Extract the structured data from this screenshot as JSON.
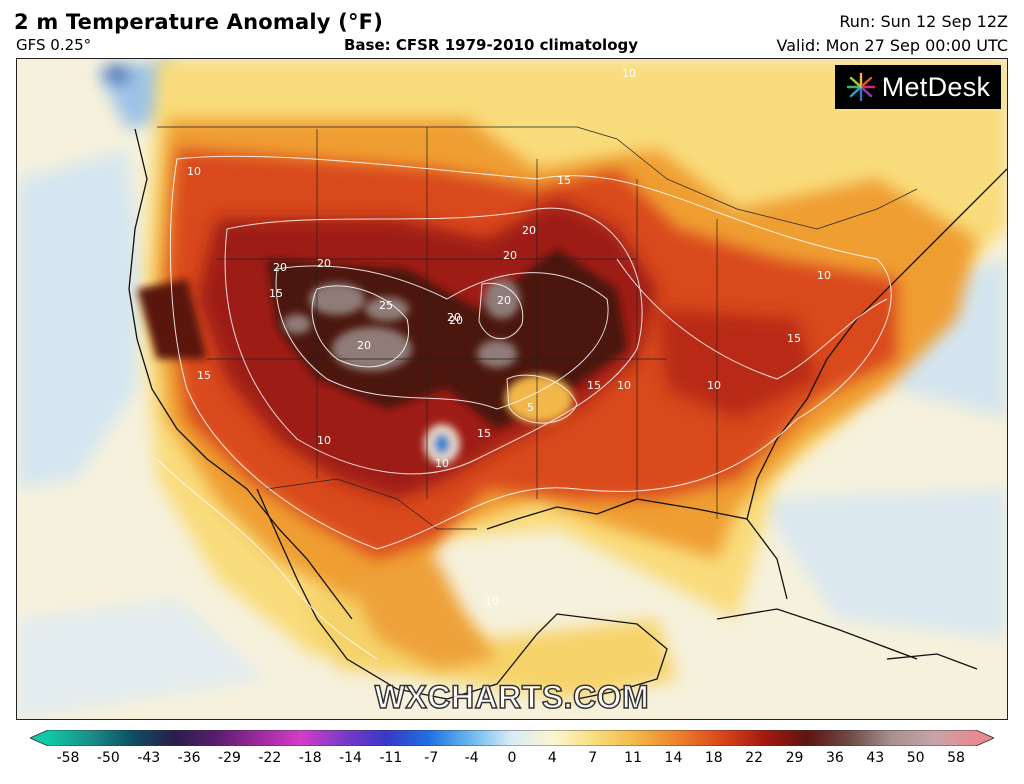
{
  "header": {
    "title": "2 m Temperature Anomaly (°F)",
    "model": "GFS 0.25°",
    "base": "Base: CFSR 1979-2010 climatology",
    "run": "Run: Sun 12 Sep 12Z",
    "valid": "Valid: Mon 27 Sep 00:00 UTC"
  },
  "branding": {
    "logo_text": "MetDesk",
    "logo_icon": "starburst-icon",
    "watermark": "WXCHARTS.COM"
  },
  "map": {
    "region": "North America",
    "contour_labels": [
      "5",
      "10",
      "15",
      "20",
      "25"
    ],
    "colors": {
      "ocean_cool": "#dde8f0",
      "neutral": "#fbf3cf",
      "warm_light": "#f8d36a",
      "warm": "#ee9a2f",
      "hot": "#d8441b",
      "very_hot": "#9c1b12",
      "extreme": "#4a1410",
      "peak": "#8d7b78",
      "contour": "#ffffff",
      "coastline": "#111111"
    }
  },
  "legend": {
    "ticks": [
      "-58",
      "-50",
      "-43",
      "-36",
      "-29",
      "-22",
      "-18",
      "-14",
      "-11",
      "-7",
      "-4",
      "0",
      "4",
      "7",
      "11",
      "14",
      "18",
      "22",
      "29",
      "36",
      "43",
      "50",
      "58"
    ],
    "colors": [
      "#0fc9a6",
      "#1a8f8a",
      "#0d4f62",
      "#2a1e4a",
      "#5a1d6e",
      "#9e2aa0",
      "#d23ec7",
      "#7a3bc8",
      "#3a37c8",
      "#1e6fe0",
      "#69b6ef",
      "#d9ecf6",
      "#fcf5cf",
      "#f8dc7a",
      "#f3b446",
      "#ec7d2c",
      "#d9441a",
      "#a21a11",
      "#5e1410",
      "#6e4a46",
      "#a8918e",
      "#c6a3a8",
      "#e68a8f"
    ]
  }
}
